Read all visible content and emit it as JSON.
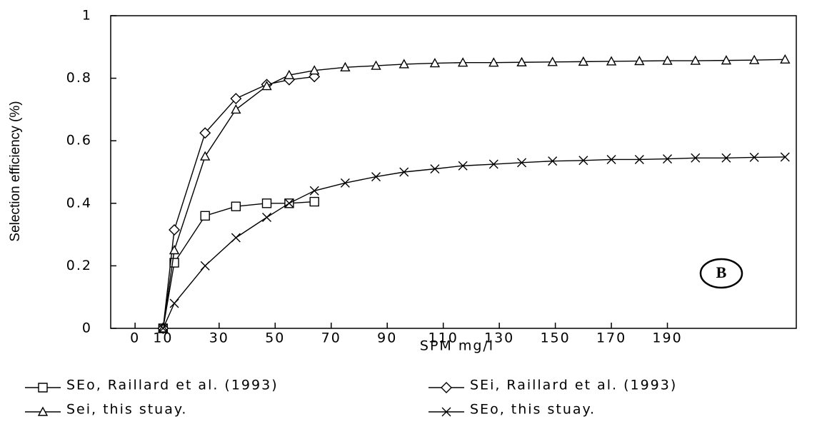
{
  "chart_data": {
    "type": "line",
    "y_label": "Selection efficiency (%)",
    "x_label": "SPM mg/l",
    "annotation": "B",
    "x": [
      10,
      14,
      25,
      36,
      47,
      55,
      64,
      75,
      86,
      96,
      107,
      117,
      128,
      138,
      149,
      160,
      170,
      180,
      190,
      200,
      211,
      221,
      232
    ],
    "series": [
      {
        "name": "SEo, Raillard et al. (1993)",
        "color": "#000000",
        "marker": "square",
        "values": [
          0,
          0.21,
          0.36,
          0.39,
          0.4,
          0.4,
          0.405,
          null,
          null,
          null,
          null,
          null,
          null,
          null,
          null,
          null,
          null,
          null,
          null,
          null,
          null,
          null,
          null
        ]
      },
      {
        "name": "SEi, Raillard et al. (1993)",
        "color": "#000000",
        "marker": "diamond",
        "values": [
          0,
          0.315,
          0.625,
          0.735,
          0.78,
          0.795,
          0.805,
          null,
          null,
          null,
          null,
          null,
          null,
          null,
          null,
          null,
          null,
          null,
          null,
          null,
          null,
          null,
          null
        ]
      },
      {
        "name": "Sei, this stuay.",
        "color": "#000000",
        "marker": "triangle",
        "values": [
          0,
          0.25,
          0.55,
          0.7,
          0.775,
          0.81,
          0.825,
          0.835,
          0.84,
          0.845,
          0.848,
          0.85,
          0.85,
          0.851,
          0.852,
          0.853,
          0.854,
          0.855,
          0.856,
          0.856,
          0.857,
          0.858,
          0.86
        ]
      },
      {
        "name": "SEo, this stuay.",
        "color": "#000000",
        "marker": "cross",
        "values": [
          0,
          0.08,
          0.2,
          0.29,
          0.355,
          0.4,
          0.44,
          0.465,
          0.485,
          0.5,
          0.51,
          0.52,
          0.525,
          0.53,
          0.535,
          0.537,
          0.54,
          0.54,
          0.542,
          0.545,
          0.545,
          0.547,
          0.548
        ]
      }
    ],
    "xlim": [
      -8.7,
      236
    ],
    "xticks": [
      0,
      10,
      30,
      50,
      70,
      90,
      110,
      130,
      150,
      170,
      190
    ],
    "ylim": [
      0,
      1
    ],
    "yticks": [
      0,
      0.2,
      0.4,
      0.6,
      0.8,
      1
    ],
    "grid": false
  }
}
